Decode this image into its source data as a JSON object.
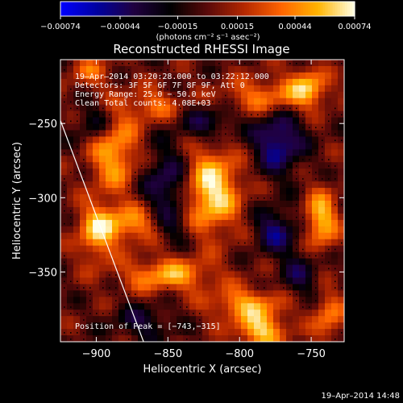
{
  "chart_data": {
    "type": "heatmap",
    "title": "Reconstructed RHESSI Image",
    "xlabel": "Heliocentric X (arcsec)",
    "ylabel": "Heliocentric Y (arcsec)",
    "xlim": [
      -925,
      -727
    ],
    "ylim": [
      -397,
      -207
    ],
    "x_ticks": [
      -900,
      -850,
      -800,
      -750
    ],
    "y_ticks": [
      -250,
      -300,
      -350
    ],
    "x_tick_labels": [
      "−900",
      "−850",
      "−800",
      "−750"
    ],
    "y_tick_labels": [
      "−250",
      "−300",
      "−350"
    ],
    "colorbar": {
      "vmin": -0.00074,
      "vmax": 0.00074,
      "ticks": [
        -0.00074,
        -0.00044,
        -0.00015,
        0.00015,
        0.00044,
        0.00074
      ],
      "tick_labels": [
        "−0.00074",
        "−0.00044",
        "−0.00015",
        "0.00015",
        "0.00044",
        "0.00074"
      ],
      "unit_label": "(photons cm⁻² s⁻¹ asec⁻²)",
      "colors": [
        "#0000ff",
        "#0000a0",
        "#200040",
        "#000000",
        "#5a0a0a",
        "#b42800",
        "#ff6400",
        "#ffb400",
        "#ffffe6"
      ]
    },
    "annotations": [
      "19–Apr–2014 03:20:28.000 to 03:22:12.000",
      "Detectors: 3F 5F 6F 7F 8F 9F, Att 0",
      "Energy Range: 25.0 − 50.0 keV",
      "Clean     Total counts: 4.08E+03"
    ],
    "peak_label": "Position of Peak = [−743,−315]",
    "peak": [
      -743,
      -315
    ],
    "limb_line": [
      [
        -925,
        -248
      ],
      [
        -867,
        -397
      ]
    ],
    "sources": [
      {
        "x": -820,
        "y": -295,
        "sx": 14,
        "sy": 20,
        "amp": 0.00072
      },
      {
        "x": -888,
        "y": -268,
        "sx": 12,
        "sy": 20,
        "amp": 0.00055
      },
      {
        "x": -875,
        "y": -318,
        "sx": 20,
        "sy": 9,
        "amp": 0.00048
      },
      {
        "x": -900,
        "y": -325,
        "sx": 9,
        "sy": 14,
        "amp": 0.00045
      },
      {
        "x": -850,
        "y": -352,
        "sx": 22,
        "sy": 8,
        "amp": 0.00052
      },
      {
        "x": -795,
        "y": -372,
        "sx": 18,
        "sy": 8,
        "amp": 0.0005
      },
      {
        "x": -785,
        "y": -390,
        "sx": 12,
        "sy": 8,
        "amp": 0.0006
      },
      {
        "x": -743,
        "y": -315,
        "sx": 8,
        "sy": 14,
        "amp": 0.0006
      },
      {
        "x": -780,
        "y": -232,
        "sx": 22,
        "sy": 9,
        "amp": 0.00042
      },
      {
        "x": -752,
        "y": -225,
        "sx": 9,
        "sy": 9,
        "amp": 0.00048
      },
      {
        "x": -860,
        "y": -238,
        "sx": 13,
        "sy": 8,
        "amp": 0.00035
      },
      {
        "x": -905,
        "y": -215,
        "sx": 10,
        "sy": 8,
        "amp": 0.0003
      },
      {
        "x": -738,
        "y": -380,
        "sx": 8,
        "sy": 12,
        "amp": 0.0004
      },
      {
        "x": -900,
        "y": -250,
        "sx": 10,
        "sy": 10,
        "amp": -0.00035
      },
      {
        "x": -850,
        "y": -292,
        "sx": 12,
        "sy": 18,
        "amp": -0.00045
      },
      {
        "x": -773,
        "y": -262,
        "sx": 12,
        "sy": 15,
        "amp": -0.00055
      },
      {
        "x": -775,
        "y": -322,
        "sx": 10,
        "sy": 10,
        "amp": -0.00045
      },
      {
        "x": -758,
        "y": -352,
        "sx": 10,
        "sy": 12,
        "amp": -0.0003
      },
      {
        "x": -822,
        "y": -250,
        "sx": 14,
        "sy": 8,
        "amp": -0.00035
      },
      {
        "x": -848,
        "y": -320,
        "sx": 10,
        "sy": 8,
        "amp": -0.0003
      },
      {
        "x": -868,
        "y": -384,
        "sx": 14,
        "sy": 8,
        "amp": -0.0003
      }
    ]
  },
  "footer": {
    "timestamp": "19–Apr–2014 14:48"
  }
}
